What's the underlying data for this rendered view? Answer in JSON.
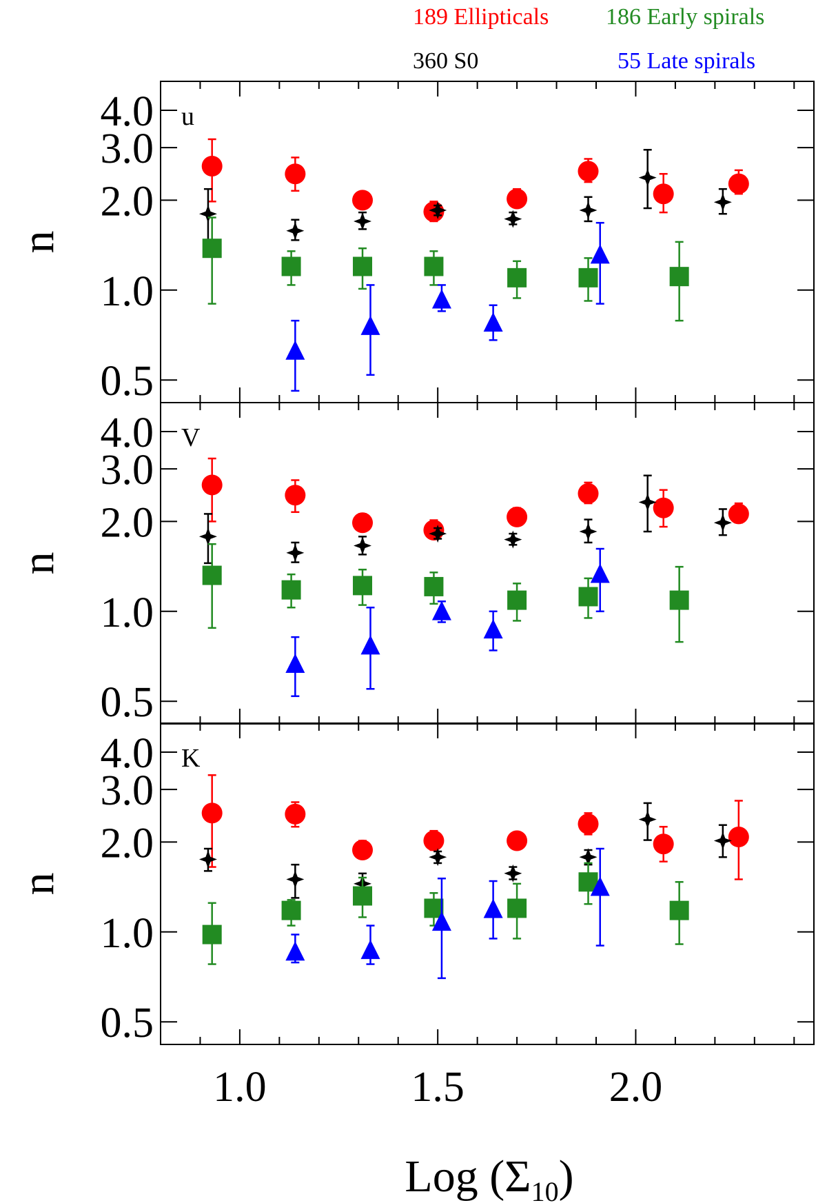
{
  "legend": {
    "ellipticals": "189 Ellipticals",
    "early_spirals": "186 Early spirals",
    "s0": "360 S0",
    "late_spirals": "55 Late spirals"
  },
  "colors": {
    "ellipticals": "#ff0000",
    "s0": "#000000",
    "early_spirals": "#228b22",
    "late_spirals": "#0000ff"
  },
  "chart_data": {
    "type": "scatter",
    "xlabel_main": "Log (Σ",
    "xlabel_sub": "10",
    "xlabel_close": ")",
    "ylabel": "n",
    "xlim": [
      0.8,
      2.45
    ],
    "ylim": [
      0.42,
      5.0
    ],
    "yscale": "log",
    "x_ticks": [
      1.0,
      1.5,
      2.0
    ],
    "x_tick_labels": [
      "1.0",
      "1.5",
      "2.0"
    ],
    "y_ticks": [
      0.5,
      1.0,
      2.0,
      3.0,
      4.0
    ],
    "y_tick_labels": [
      "0.5",
      "1.0",
      "2.0",
      "3.0",
      "4.0"
    ],
    "panels": [
      {
        "band": "u",
        "series": [
          {
            "name": "189 Ellipticals",
            "marker": "circle",
            "points": [
              {
                "x": 0.93,
                "y": 2.6,
                "lo": 1.98,
                "hi": 3.2
              },
              {
                "x": 1.14,
                "y": 2.45,
                "lo": 2.15,
                "hi": 2.78
              },
              {
                "x": 1.31,
                "y": 2.0,
                "lo": 1.88,
                "hi": 2.12
              },
              {
                "x": 1.49,
                "y": 1.83,
                "lo": 1.7,
                "hi": 1.98
              },
              {
                "x": 1.7,
                "y": 2.02,
                "lo": 1.9,
                "hi": 2.18
              },
              {
                "x": 1.88,
                "y": 2.5,
                "lo": 2.3,
                "hi": 2.75
              },
              {
                "x": 2.07,
                "y": 2.1,
                "lo": 1.82,
                "hi": 2.45
              },
              {
                "x": 2.26,
                "y": 2.27,
                "lo": 2.1,
                "hi": 2.52
              }
            ]
          },
          {
            "name": "360 S0",
            "marker": "star",
            "points": [
              {
                "x": 0.92,
                "y": 1.8,
                "lo": 1.45,
                "hi": 2.18
              },
              {
                "x": 1.14,
                "y": 1.58,
                "lo": 1.47,
                "hi": 1.72
              },
              {
                "x": 1.31,
                "y": 1.7,
                "lo": 1.6,
                "hi": 1.82
              },
              {
                "x": 1.5,
                "y": 1.85,
                "lo": 1.78,
                "hi": 1.92
              },
              {
                "x": 1.69,
                "y": 1.73,
                "lo": 1.66,
                "hi": 1.82
              },
              {
                "x": 1.88,
                "y": 1.85,
                "lo": 1.7,
                "hi": 2.05
              },
              {
                "x": 2.03,
                "y": 2.38,
                "lo": 1.88,
                "hi": 2.95
              },
              {
                "x": 2.22,
                "y": 1.97,
                "lo": 1.8,
                "hi": 2.18
              }
            ]
          },
          {
            "name": "186 Early spirals",
            "marker": "square",
            "points": [
              {
                "x": 0.93,
                "y": 1.38,
                "lo": 0.9,
                "hi": 1.75
              },
              {
                "x": 1.13,
                "y": 1.2,
                "lo": 1.04,
                "hi": 1.35
              },
              {
                "x": 1.31,
                "y": 1.2,
                "lo": 1.01,
                "hi": 1.38
              },
              {
                "x": 1.49,
                "y": 1.2,
                "lo": 1.04,
                "hi": 1.35
              },
              {
                "x": 1.7,
                "y": 1.1,
                "lo": 0.94,
                "hi": 1.25
              },
              {
                "x": 1.88,
                "y": 1.1,
                "lo": 0.92,
                "hi": 1.28
              },
              {
                "x": 2.11,
                "y": 1.11,
                "lo": 0.79,
                "hi": 1.45
              }
            ]
          },
          {
            "name": "55 Late spirals",
            "marker": "triangle",
            "points": [
              {
                "x": 1.14,
                "y": 0.62,
                "lo": 0.46,
                "hi": 0.79
              },
              {
                "x": 1.33,
                "y": 0.75,
                "lo": 0.52,
                "hi": 1.04
              },
              {
                "x": 1.51,
                "y": 0.92,
                "lo": 0.85,
                "hi": 1.04
              },
              {
                "x": 1.64,
                "y": 0.77,
                "lo": 0.68,
                "hi": 0.89
              },
              {
                "x": 1.91,
                "y": 1.3,
                "lo": 0.9,
                "hi": 1.68
              }
            ]
          }
        ]
      },
      {
        "band": "V",
        "series": [
          {
            "name": "189 Ellipticals",
            "marker": "circle",
            "points": [
              {
                "x": 0.93,
                "y": 2.65,
                "lo": 2.0,
                "hi": 3.25
              },
              {
                "x": 1.14,
                "y": 2.45,
                "lo": 2.15,
                "hi": 2.75
              },
              {
                "x": 1.31,
                "y": 1.98,
                "lo": 1.86,
                "hi": 2.12
              },
              {
                "x": 1.49,
                "y": 1.87,
                "lo": 1.75,
                "hi": 2.02
              },
              {
                "x": 1.7,
                "y": 2.07,
                "lo": 1.94,
                "hi": 2.22
              },
              {
                "x": 1.88,
                "y": 2.48,
                "lo": 2.3,
                "hi": 2.7
              },
              {
                "x": 2.07,
                "y": 2.22,
                "lo": 1.92,
                "hi": 2.55
              },
              {
                "x": 2.26,
                "y": 2.12,
                "lo": 1.98,
                "hi": 2.3
              }
            ]
          },
          {
            "name": "360 S0",
            "marker": "star",
            "points": [
              {
                "x": 0.92,
                "y": 1.78,
                "lo": 1.45,
                "hi": 2.12
              },
              {
                "x": 1.14,
                "y": 1.57,
                "lo": 1.46,
                "hi": 1.7
              },
              {
                "x": 1.31,
                "y": 1.66,
                "lo": 1.55,
                "hi": 1.78
              },
              {
                "x": 1.5,
                "y": 1.82,
                "lo": 1.75,
                "hi": 1.9
              },
              {
                "x": 1.69,
                "y": 1.74,
                "lo": 1.67,
                "hi": 1.82
              },
              {
                "x": 1.88,
                "y": 1.85,
                "lo": 1.7,
                "hi": 2.03
              },
              {
                "x": 2.03,
                "y": 2.32,
                "lo": 1.85,
                "hi": 2.85
              },
              {
                "x": 2.22,
                "y": 1.98,
                "lo": 1.8,
                "hi": 2.2
              }
            ]
          },
          {
            "name": "186 Early spirals",
            "marker": "square",
            "points": [
              {
                "x": 0.93,
                "y": 1.32,
                "lo": 0.88,
                "hi": 1.68
              },
              {
                "x": 1.13,
                "y": 1.18,
                "lo": 1.03,
                "hi": 1.33
              },
              {
                "x": 1.31,
                "y": 1.22,
                "lo": 1.05,
                "hi": 1.38
              },
              {
                "x": 1.49,
                "y": 1.21,
                "lo": 1.06,
                "hi": 1.35
              },
              {
                "x": 1.7,
                "y": 1.09,
                "lo": 0.93,
                "hi": 1.24
              },
              {
                "x": 1.88,
                "y": 1.12,
                "lo": 0.95,
                "hi": 1.29
              },
              {
                "x": 2.11,
                "y": 1.09,
                "lo": 0.79,
                "hi": 1.41
              }
            ]
          },
          {
            "name": "55 Late spirals",
            "marker": "triangle",
            "points": [
              {
                "x": 1.14,
                "y": 0.66,
                "lo": 0.52,
                "hi": 0.82
              },
              {
                "x": 1.33,
                "y": 0.76,
                "lo": 0.55,
                "hi": 1.03
              },
              {
                "x": 1.51,
                "y": 0.99,
                "lo": 0.92,
                "hi": 1.08
              },
              {
                "x": 1.64,
                "y": 0.86,
                "lo": 0.74,
                "hi": 1.0
              },
              {
                "x": 1.91,
                "y": 1.32,
                "lo": 1.0,
                "hi": 1.62
              }
            ]
          }
        ]
      },
      {
        "band": "K",
        "series": [
          {
            "name": "189 Ellipticals",
            "marker": "circle",
            "points": [
              {
                "x": 0.93,
                "y": 2.5,
                "lo": 1.65,
                "hi": 3.35
              },
              {
                "x": 1.14,
                "y": 2.48,
                "lo": 2.25,
                "hi": 2.72
              },
              {
                "x": 1.31,
                "y": 1.88,
                "lo": 1.76,
                "hi": 2.02
              },
              {
                "x": 1.49,
                "y": 2.02,
                "lo": 1.88,
                "hi": 2.18
              },
              {
                "x": 1.7,
                "y": 2.02,
                "lo": 1.9,
                "hi": 2.16
              },
              {
                "x": 1.88,
                "y": 2.3,
                "lo": 2.12,
                "hi": 2.5
              },
              {
                "x": 2.07,
                "y": 1.97,
                "lo": 1.72,
                "hi": 2.25
              },
              {
                "x": 2.26,
                "y": 2.08,
                "lo": 1.5,
                "hi": 2.75
              }
            ]
          },
          {
            "name": "360 S0",
            "marker": "star",
            "points": [
              {
                "x": 0.92,
                "y": 1.75,
                "lo": 1.6,
                "hi": 1.9
              },
              {
                "x": 1.14,
                "y": 1.5,
                "lo": 1.3,
                "hi": 1.68
              },
              {
                "x": 1.31,
                "y": 1.45,
                "lo": 1.3,
                "hi": 1.57
              },
              {
                "x": 1.5,
                "y": 1.78,
                "lo": 1.7,
                "hi": 1.86
              },
              {
                "x": 1.69,
                "y": 1.57,
                "lo": 1.5,
                "hi": 1.65
              },
              {
                "x": 1.88,
                "y": 1.78,
                "lo": 1.68,
                "hi": 1.88
              },
              {
                "x": 2.03,
                "y": 2.38,
                "lo": 2.03,
                "hi": 2.7
              },
              {
                "x": 2.22,
                "y": 2.02,
                "lo": 1.78,
                "hi": 2.28
              }
            ]
          },
          {
            "name": "186 Early spirals",
            "marker": "square",
            "points": [
              {
                "x": 0.93,
                "y": 0.98,
                "lo": 0.78,
                "hi": 1.25
              },
              {
                "x": 1.13,
                "y": 1.18,
                "lo": 1.05,
                "hi": 1.28
              },
              {
                "x": 1.31,
                "y": 1.32,
                "lo": 1.12,
                "hi": 1.52
              },
              {
                "x": 1.49,
                "y": 1.2,
                "lo": 1.05,
                "hi": 1.35
              },
              {
                "x": 1.7,
                "y": 1.2,
                "lo": 0.95,
                "hi": 1.45
              },
              {
                "x": 1.88,
                "y": 1.47,
                "lo": 1.24,
                "hi": 1.7
              },
              {
                "x": 2.11,
                "y": 1.18,
                "lo": 0.91,
                "hi": 1.47
              }
            ]
          },
          {
            "name": "55 Late spirals",
            "marker": "triangle",
            "points": [
              {
                "x": 1.14,
                "y": 0.85,
                "lo": 0.79,
                "hi": 0.98
              },
              {
                "x": 1.33,
                "y": 0.86,
                "lo": 0.78,
                "hi": 1.05
              },
              {
                "x": 1.51,
                "y": 1.07,
                "lo": 0.7,
                "hi": 1.51
              },
              {
                "x": 1.64,
                "y": 1.18,
                "lo": 0.95,
                "hi": 1.48
              },
              {
                "x": 1.91,
                "y": 1.4,
                "lo": 0.9,
                "hi": 1.9
              }
            ]
          }
        ]
      }
    ]
  }
}
